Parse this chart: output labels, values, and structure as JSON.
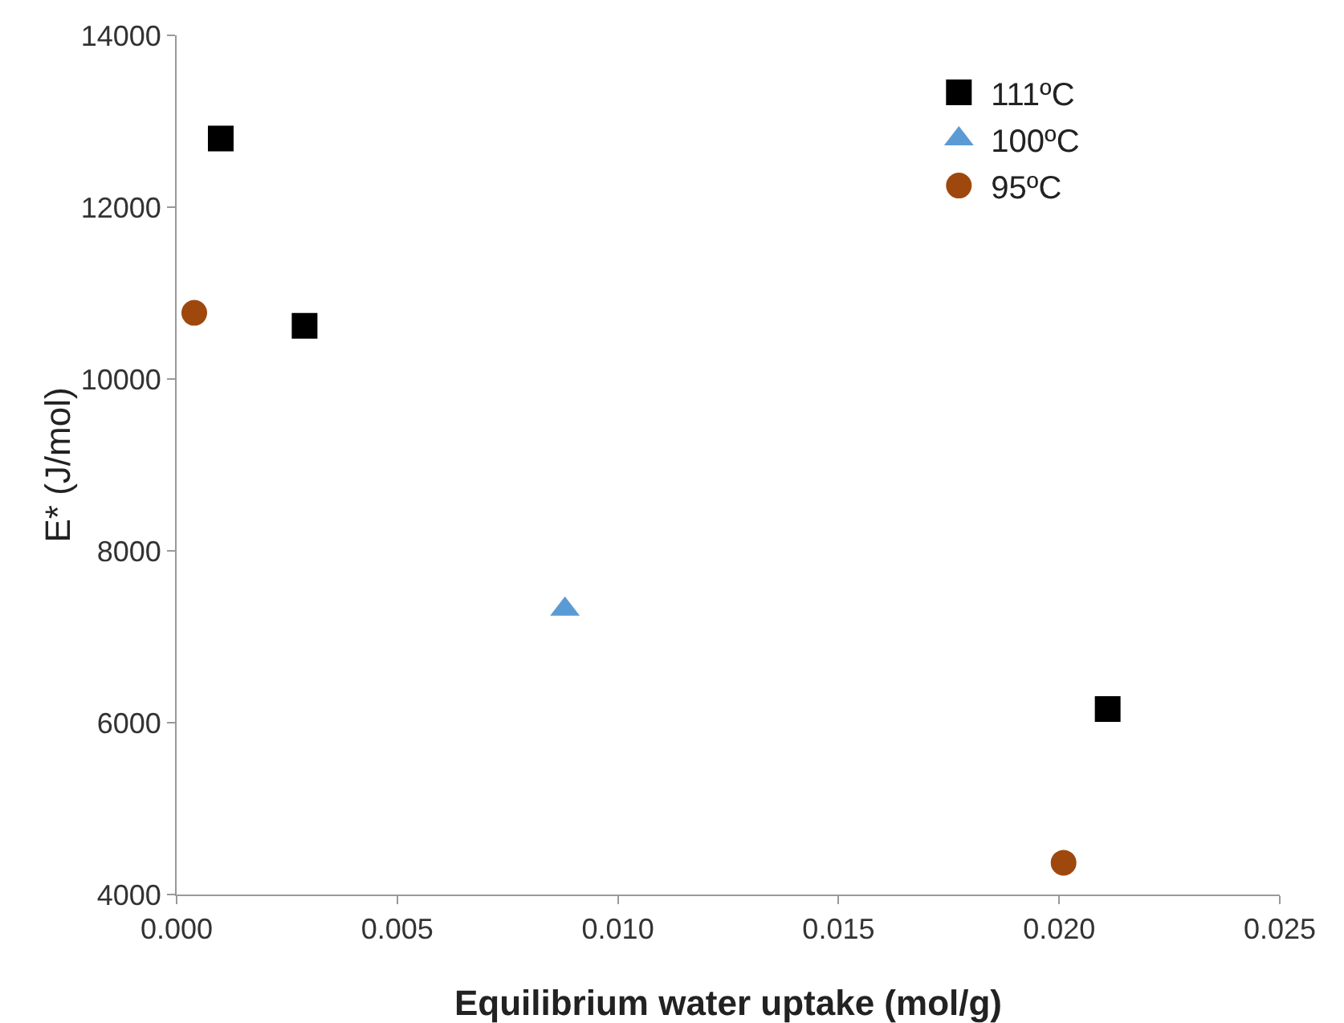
{
  "chart_data": {
    "type": "scatter",
    "xlabel": "Equilibrium water uptake (mol/g)",
    "ylabel": "E* (J/mol)",
    "xlim": [
      0,
      0.025
    ],
    "xticks": [
      {
        "value": 0,
        "label": "0.000"
      },
      {
        "value": 0.005,
        "label": "0.005"
      },
      {
        "value": 0.01,
        "label": "0.010"
      },
      {
        "value": 0.015,
        "label": "0.015"
      },
      {
        "value": 0.02,
        "label": "0.020"
      },
      {
        "value": 0.025,
        "label": "0.025"
      }
    ],
    "ylim": [
      4000,
      14000
    ],
    "yticks": [
      4000,
      6000,
      8000,
      10000,
      12000,
      14000
    ],
    "grid": false,
    "legend": "top right",
    "series": [
      {
        "name": "111ºC",
        "color": "#000000",
        "marker": "square",
        "x": [
          0.001,
          0.0029,
          0.0211
        ],
        "values": [
          12800,
          10620,
          6160
        ]
      },
      {
        "name": "100ºC",
        "color": "#5b9bd5",
        "marker": "triangle",
        "x": [
          0.0088
        ],
        "values": [
          7320
        ]
      },
      {
        "name": "95ºC",
        "color": "#9e480e",
        "marker": "circle",
        "x": [
          0.0004,
          0.0201
        ],
        "values": [
          10770,
          4370
        ]
      }
    ]
  }
}
